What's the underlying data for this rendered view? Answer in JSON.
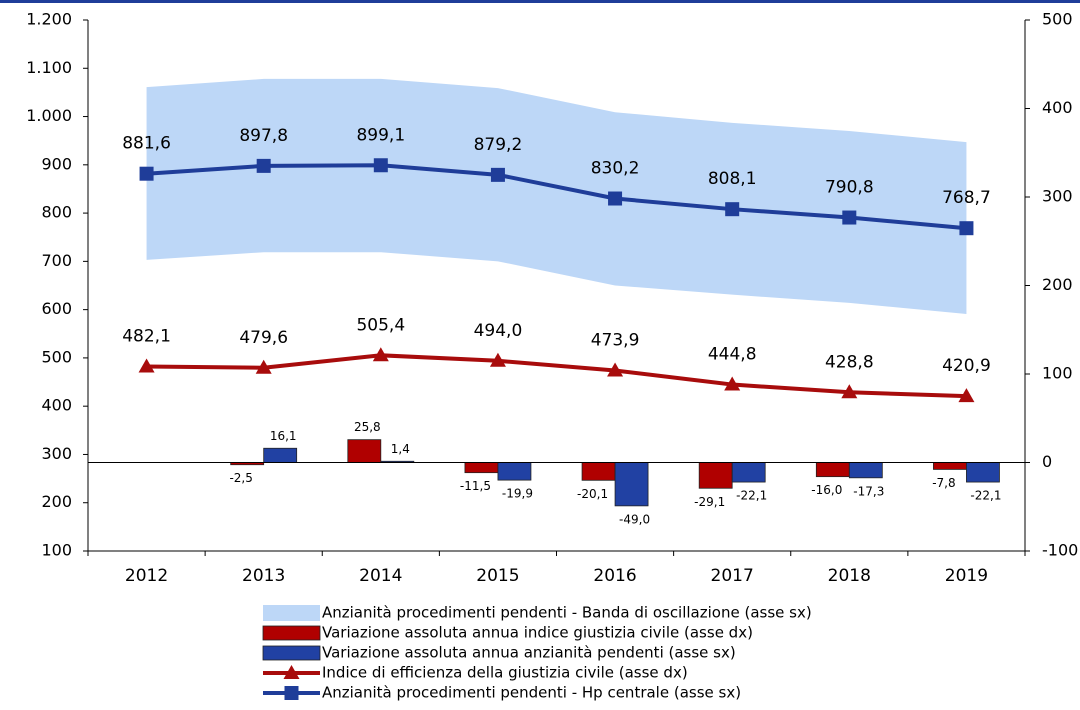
{
  "chart_data": {
    "type": "combo",
    "categories": [
      "2012",
      "2013",
      "2014",
      "2015",
      "2016",
      "2017",
      "2018",
      "2019"
    ],
    "ylim": [
      100,
      1200
    ],
    "yticks": [
      100,
      200,
      300,
      400,
      500,
      600,
      700,
      800,
      900,
      {
        "value": 1000,
        "label": "1.000"
      },
      {
        "value": 1100,
        "label": "1.100"
      },
      {
        "value": 1200,
        "label": "1.200"
      }
    ],
    "y2lim": [
      -100,
      500
    ],
    "y2ticks": [
      -100,
      0,
      100,
      200,
      300,
      400,
      500
    ],
    "series": [
      {
        "name": "Anzianità procedimenti pendenti - Banda di oscillazione (asse sx)",
        "type": "area",
        "color": "#bdd7f7",
        "low": [
          703,
          719,
          719,
          700,
          650,
          631,
          614,
          591
        ],
        "values": [
          1061,
          1078,
          1078,
          1059,
          1009,
          987,
          970,
          947
        ]
      },
      {
        "name": "Variazione assoluta annua indice giustizia civile (asse dx)",
        "type": "bar",
        "axis": "y2",
        "color": "#b00000",
        "values": [
          null,
          -2.5,
          25.8,
          -11.5,
          -20.1,
          -29.1,
          -16.0,
          -7.8
        ],
        "value_labels": [
          null,
          "-2,5",
          "25,8",
          "-11,5",
          "-20,1",
          "-29,1",
          "-16,0",
          "-7,8"
        ]
      },
      {
        "name": "Variazione assoluta annua anzianità pendenti (asse sx)",
        "type": "bar",
        "axis": "y2",
        "color": "#2141a3",
        "values": [
          null,
          16.1,
          1.4,
          -19.9,
          -49.0,
          -22.1,
          -17.3,
          -22.1
        ],
        "value_labels": [
          null,
          "16,1",
          "1,4",
          "-19,9",
          "-49,0",
          "-22,1",
          "-17,3",
          "-22,1"
        ]
      },
      {
        "name": "Indice di efficienza della giustizia civile (asse dx)",
        "type": "line",
        "marker": "triangle",
        "color": "#a80c0c",
        "values": [
          482.1,
          479.6,
          505.4,
          494.0,
          473.9,
          444.8,
          428.8,
          420.9
        ],
        "value_labels": [
          "482,1",
          "479,6",
          "505,4",
          "494,0",
          "473,9",
          "444,8",
          "428,8",
          "420,9"
        ]
      },
      {
        "name": "Anzianità procedimenti pendenti - Hp centrale (asse sx)",
        "type": "line",
        "marker": "square",
        "color": "#1f3d99",
        "values": [
          881.6,
          897.8,
          899.1,
          879.2,
          830.2,
          808.1,
          790.8,
          768.7
        ],
        "value_labels": [
          "881,6",
          "897,8",
          "899,1",
          "879,2",
          "830,2",
          "808,1",
          "790,8",
          "768,7"
        ]
      }
    ]
  }
}
